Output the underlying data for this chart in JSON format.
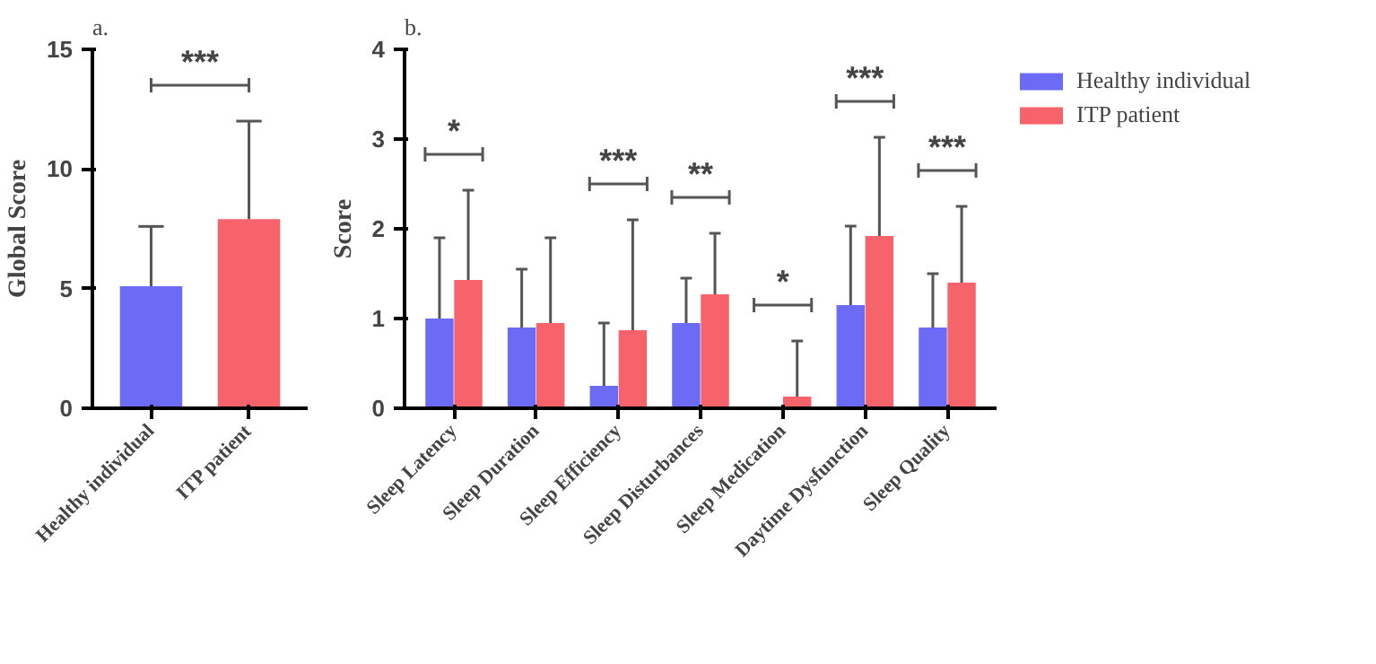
{
  "chart_data": [
    {
      "type": "bar",
      "title": "a.",
      "ylabel": "Global Score",
      "categories": [
        "Healthy individual",
        "ITP patient"
      ],
      "values": [
        5.1,
        7.9
      ],
      "colors": [
        "#6b6bf5",
        "#f7636b"
      ],
      "errors": [
        [
          5.1,
          7.6
        ],
        [
          7.9,
          12.0
        ]
      ],
      "ylim": [
        0,
        15
      ],
      "yticks": [
        0,
        5,
        10,
        15
      ],
      "grid": false,
      "legend": false,
      "annotations": [
        "***"
      ]
    },
    {
      "type": "bar",
      "title": "b.",
      "ylabel": "Score",
      "categories": [
        "Sleep Latency",
        "Sleep Duration",
        "Sleep Efficiency",
        "Sleep Disturbances",
        "Sleep Medication",
        "Daytime Dysfunction",
        "Sleep Quality"
      ],
      "series": [
        {
          "name": "Healthy individual",
          "color": "#6b6bf5",
          "values": [
            1.0,
            0.9,
            0.25,
            0.95,
            0.0,
            1.15,
            0.9
          ],
          "errors": [
            [
              1.0,
              1.9
            ],
            [
              0.9,
              1.55
            ],
            [
              0.25,
              0.95
            ],
            [
              0.95,
              1.45
            ],
            null,
            [
              1.15,
              2.03
            ],
            [
              0.9,
              1.5
            ]
          ]
        },
        {
          "name": "ITP patient",
          "color": "#f7636b",
          "values": [
            1.43,
            0.95,
            0.87,
            1.27,
            0.13,
            1.92,
            1.4
          ],
          "errors": [
            [
              1.43,
              2.43
            ],
            [
              0.95,
              1.9
            ],
            [
              0.87,
              2.1
            ],
            [
              1.27,
              1.95
            ],
            [
              0.13,
              0.75
            ],
            [
              1.92,
              3.02
            ],
            [
              1.4,
              2.25
            ]
          ]
        }
      ],
      "ylim": [
        0,
        4
      ],
      "yticks": [
        0,
        1,
        2,
        3,
        4
      ],
      "grid": false,
      "legend": "right",
      "annotations": [
        "*",
        "***",
        "**",
        "*",
        "***",
        "***"
      ]
    }
  ]
}
